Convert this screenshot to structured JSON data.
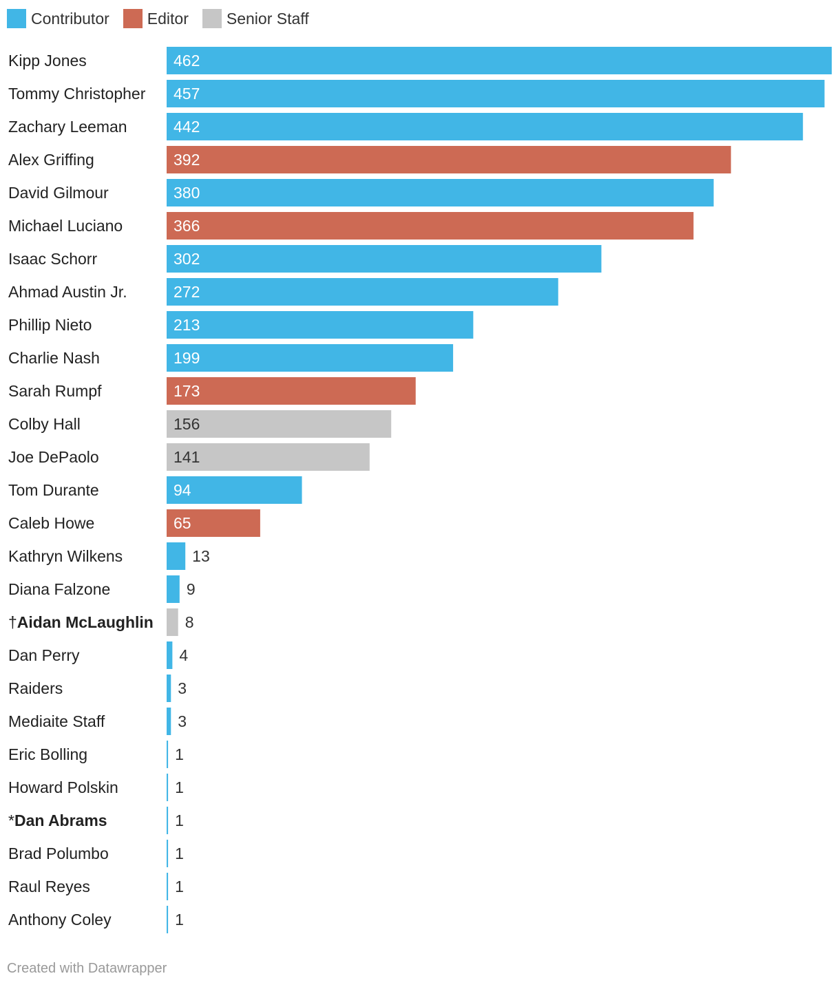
{
  "legend": [
    {
      "label": "Contributor",
      "color": "#41b6e6"
    },
    {
      "label": "Editor",
      "color": "#cd6a54"
    },
    {
      "label": "Senior Staff",
      "color": "#c6c6c6"
    }
  ],
  "chart_data": {
    "type": "bar",
    "orientation": "horizontal",
    "title": "",
    "xlabel": "",
    "ylabel": "",
    "xlim": [
      0,
      462
    ],
    "categories": [
      "Kipp Jones",
      "Tommy Christopher",
      "Zachary Leeman",
      "Alex Griffing",
      "David Gilmour",
      "Michael Luciano",
      "Isaac Schorr",
      "Ahmad Austin Jr.",
      "Phillip Nieto",
      "Charlie Nash",
      "Sarah Rumpf",
      "Colby Hall",
      "Joe DePaolo",
      "Tom Durante",
      "Caleb Howe",
      "Kathryn Wilkens",
      "Diana Falzone",
      "Aidan McLaughlin",
      "Dan Perry",
      "Raiders",
      "Mediaite Staff",
      "Eric Bolling",
      "Howard Polskin",
      "Dan Abrams",
      "Brad Polumbo",
      "Raul Reyes",
      "Anthony Coley"
    ],
    "label_prefixes": [
      "",
      "",
      "",
      "",
      "",
      "",
      "",
      "",
      "",
      "",
      "",
      "",
      "",
      "",
      "",
      "",
      "",
      "†",
      "",
      "",
      "",
      "",
      "",
      "*",
      "",
      "",
      ""
    ],
    "bold": [
      false,
      false,
      false,
      false,
      false,
      false,
      false,
      false,
      false,
      false,
      false,
      false,
      false,
      false,
      false,
      false,
      false,
      true,
      false,
      false,
      false,
      false,
      false,
      true,
      false,
      false,
      false
    ],
    "values": [
      462,
      457,
      442,
      392,
      380,
      366,
      302,
      272,
      213,
      199,
      173,
      156,
      141,
      94,
      65,
      13,
      9,
      8,
      4,
      3,
      3,
      1,
      1,
      1,
      1,
      1,
      1
    ],
    "roles": [
      "Contributor",
      "Contributor",
      "Contributor",
      "Editor",
      "Contributor",
      "Editor",
      "Contributor",
      "Contributor",
      "Contributor",
      "Contributor",
      "Editor",
      "Senior Staff",
      "Senior Staff",
      "Contributor",
      "Editor",
      "Contributor",
      "Contributor",
      "Senior Staff",
      "Contributor",
      "Contributor",
      "Contributor",
      "Contributor",
      "Contributor",
      "Contributor",
      "Contributor",
      "Contributor",
      "Contributor"
    ]
  },
  "footer": "Created with Datawrapper"
}
